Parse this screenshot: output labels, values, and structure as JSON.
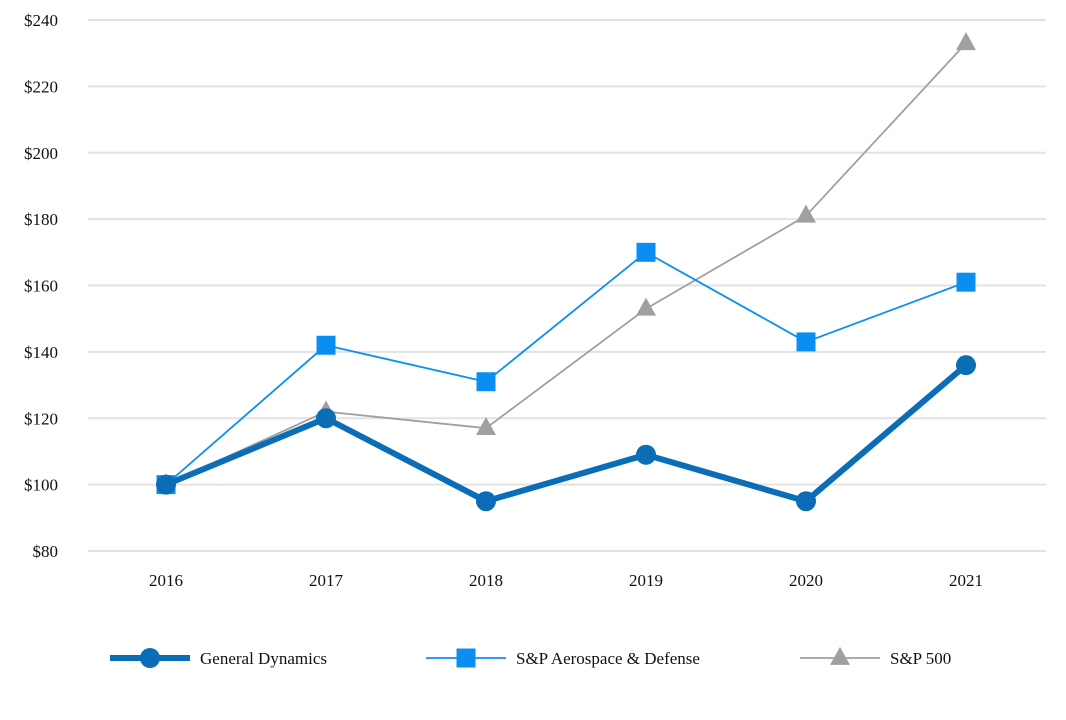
{
  "chart_data": {
    "type": "line",
    "title": "",
    "xlabel": "",
    "ylabel": "",
    "categories": [
      "2016",
      "2017",
      "2018",
      "2019",
      "2020",
      "2021"
    ],
    "ylim": [
      80,
      240
    ],
    "yticks": [
      80,
      100,
      120,
      140,
      160,
      180,
      200,
      220,
      240
    ],
    "ytick_labels": [
      "$80",
      "$100",
      "$120",
      "$140",
      "$160",
      "$180",
      "$200",
      "$220",
      "$240"
    ],
    "grid": true,
    "legend_position": "bottom",
    "series": [
      {
        "name": "General Dynamics",
        "values": [
          100,
          120,
          95,
          109,
          95,
          136
        ],
        "color": "#0a6db5",
        "marker": "circle",
        "line_weight": "thick"
      },
      {
        "name": "S&P Aerospace & Defense",
        "values": [
          100,
          142,
          131,
          170,
          143,
          161
        ],
        "color": "#0a8ff0",
        "marker": "square",
        "line_weight": "thin"
      },
      {
        "name": "S&P 500",
        "values": [
          100,
          122,
          117,
          153,
          181,
          233
        ],
        "color": "#a0a0a0",
        "marker": "triangle",
        "line_weight": "thin"
      }
    ]
  }
}
